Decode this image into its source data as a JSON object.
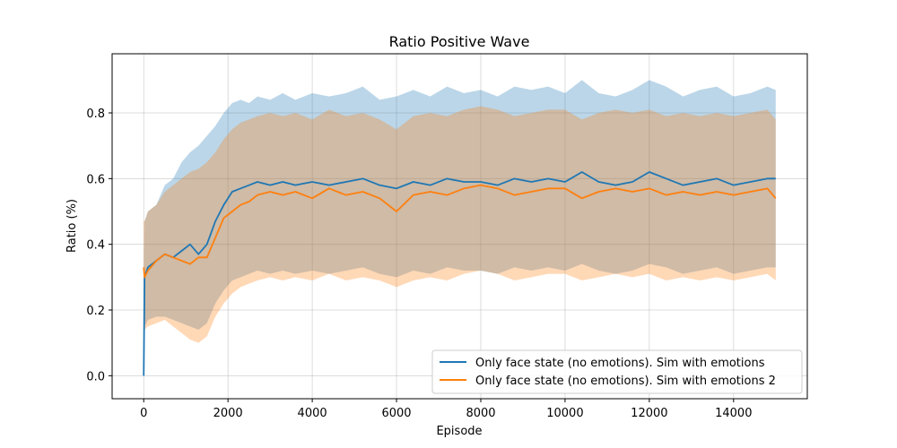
{
  "chart_data": {
    "type": "line",
    "title": "Ratio Positive Wave",
    "xlabel": "Episode",
    "ylabel": "Ratio (%)",
    "xlim": [
      -750,
      15750
    ],
    "ylim": [
      -0.07,
      0.98
    ],
    "xticks": [
      0,
      2000,
      4000,
      6000,
      8000,
      10000,
      12000,
      14000
    ],
    "yticks": [
      0.0,
      0.2,
      0.4,
      0.6,
      0.8
    ],
    "xtick_labels": [
      "0",
      "2000",
      "4000",
      "6000",
      "8000",
      "10000",
      "12000",
      "14000"
    ],
    "ytick_labels": [
      "0.0",
      "0.2",
      "0.4",
      "0.6",
      "0.8"
    ],
    "grid": true,
    "legend": "bottom-right",
    "series": [
      {
        "name": "Only face state (no emotions). Sim with emotions",
        "color": "#1f77b4",
        "x": [
          0,
          20,
          100,
          300,
          500,
          700,
          900,
          1100,
          1300,
          1500,
          1700,
          1900,
          2100,
          2300,
          2500,
          2700,
          3000,
          3300,
          3600,
          4000,
          4400,
          4800,
          5200,
          5600,
          6000,
          6400,
          6800,
          7200,
          7600,
          8000,
          8400,
          8800,
          9200,
          9600,
          10000,
          10400,
          10800,
          11200,
          11600,
          12000,
          12400,
          12800,
          13200,
          13600,
          14000,
          14400,
          14800,
          15000
        ],
        "mean": [
          0.0,
          0.3,
          0.33,
          0.35,
          0.37,
          0.36,
          0.38,
          0.4,
          0.37,
          0.4,
          0.47,
          0.52,
          0.56,
          0.57,
          0.58,
          0.59,
          0.58,
          0.59,
          0.58,
          0.59,
          0.58,
          0.59,
          0.6,
          0.58,
          0.57,
          0.59,
          0.58,
          0.6,
          0.59,
          0.59,
          0.58,
          0.6,
          0.59,
          0.6,
          0.59,
          0.62,
          0.59,
          0.58,
          0.59,
          0.62,
          0.6,
          0.58,
          0.59,
          0.6,
          0.58,
          0.59,
          0.6,
          0.6
        ],
        "upper": [
          0.25,
          0.47,
          0.5,
          0.52,
          0.58,
          0.6,
          0.65,
          0.68,
          0.7,
          0.73,
          0.76,
          0.8,
          0.83,
          0.84,
          0.83,
          0.85,
          0.84,
          0.86,
          0.84,
          0.86,
          0.85,
          0.86,
          0.88,
          0.84,
          0.85,
          0.87,
          0.85,
          0.88,
          0.86,
          0.87,
          0.85,
          0.88,
          0.87,
          0.88,
          0.86,
          0.9,
          0.86,
          0.85,
          0.87,
          0.9,
          0.88,
          0.85,
          0.87,
          0.88,
          0.85,
          0.86,
          0.88,
          0.87
        ],
        "lower": [
          0.1,
          0.15,
          0.17,
          0.18,
          0.18,
          0.17,
          0.16,
          0.15,
          0.14,
          0.16,
          0.22,
          0.26,
          0.29,
          0.3,
          0.31,
          0.32,
          0.31,
          0.32,
          0.31,
          0.32,
          0.31,
          0.32,
          0.33,
          0.31,
          0.3,
          0.32,
          0.31,
          0.33,
          0.32,
          0.32,
          0.31,
          0.33,
          0.32,
          0.33,
          0.32,
          0.34,
          0.32,
          0.31,
          0.32,
          0.34,
          0.33,
          0.31,
          0.32,
          0.33,
          0.31,
          0.32,
          0.33,
          0.33
        ]
      },
      {
        "name": "Only face state (no emotions). Sim with emotions 2",
        "color": "#ff7f0e",
        "x": [
          0,
          20,
          100,
          300,
          500,
          700,
          900,
          1100,
          1300,
          1500,
          1700,
          1900,
          2100,
          2300,
          2500,
          2700,
          3000,
          3300,
          3600,
          4000,
          4400,
          4800,
          5200,
          5600,
          6000,
          6400,
          6800,
          7200,
          7600,
          8000,
          8400,
          8800,
          9200,
          9600,
          10000,
          10400,
          10800,
          11200,
          11600,
          12000,
          12400,
          12800,
          13200,
          13600,
          14000,
          14400,
          14800,
          15000
        ],
        "mean": [
          0.33,
          0.3,
          0.32,
          0.35,
          0.37,
          0.36,
          0.35,
          0.34,
          0.36,
          0.36,
          0.42,
          0.48,
          0.5,
          0.52,
          0.53,
          0.55,
          0.56,
          0.55,
          0.56,
          0.54,
          0.57,
          0.55,
          0.56,
          0.54,
          0.5,
          0.55,
          0.56,
          0.55,
          0.57,
          0.58,
          0.57,
          0.55,
          0.56,
          0.57,
          0.57,
          0.54,
          0.56,
          0.57,
          0.56,
          0.57,
          0.55,
          0.56,
          0.55,
          0.56,
          0.55,
          0.56,
          0.57,
          0.54
        ],
        "upper": [
          0.47,
          0.47,
          0.5,
          0.52,
          0.56,
          0.58,
          0.6,
          0.62,
          0.63,
          0.65,
          0.68,
          0.72,
          0.75,
          0.77,
          0.78,
          0.79,
          0.8,
          0.79,
          0.8,
          0.78,
          0.81,
          0.79,
          0.8,
          0.78,
          0.75,
          0.79,
          0.8,
          0.79,
          0.81,
          0.82,
          0.81,
          0.79,
          0.8,
          0.81,
          0.81,
          0.78,
          0.8,
          0.81,
          0.8,
          0.81,
          0.79,
          0.8,
          0.79,
          0.8,
          0.79,
          0.8,
          0.81,
          0.78
        ],
        "lower": [
          0.12,
          0.14,
          0.15,
          0.16,
          0.17,
          0.15,
          0.13,
          0.11,
          0.1,
          0.12,
          0.18,
          0.22,
          0.25,
          0.27,
          0.28,
          0.29,
          0.3,
          0.29,
          0.3,
          0.29,
          0.31,
          0.29,
          0.3,
          0.29,
          0.27,
          0.29,
          0.3,
          0.29,
          0.31,
          0.32,
          0.31,
          0.29,
          0.3,
          0.31,
          0.31,
          0.29,
          0.3,
          0.31,
          0.3,
          0.31,
          0.29,
          0.3,
          0.29,
          0.3,
          0.29,
          0.3,
          0.31,
          0.29
        ]
      }
    ]
  }
}
